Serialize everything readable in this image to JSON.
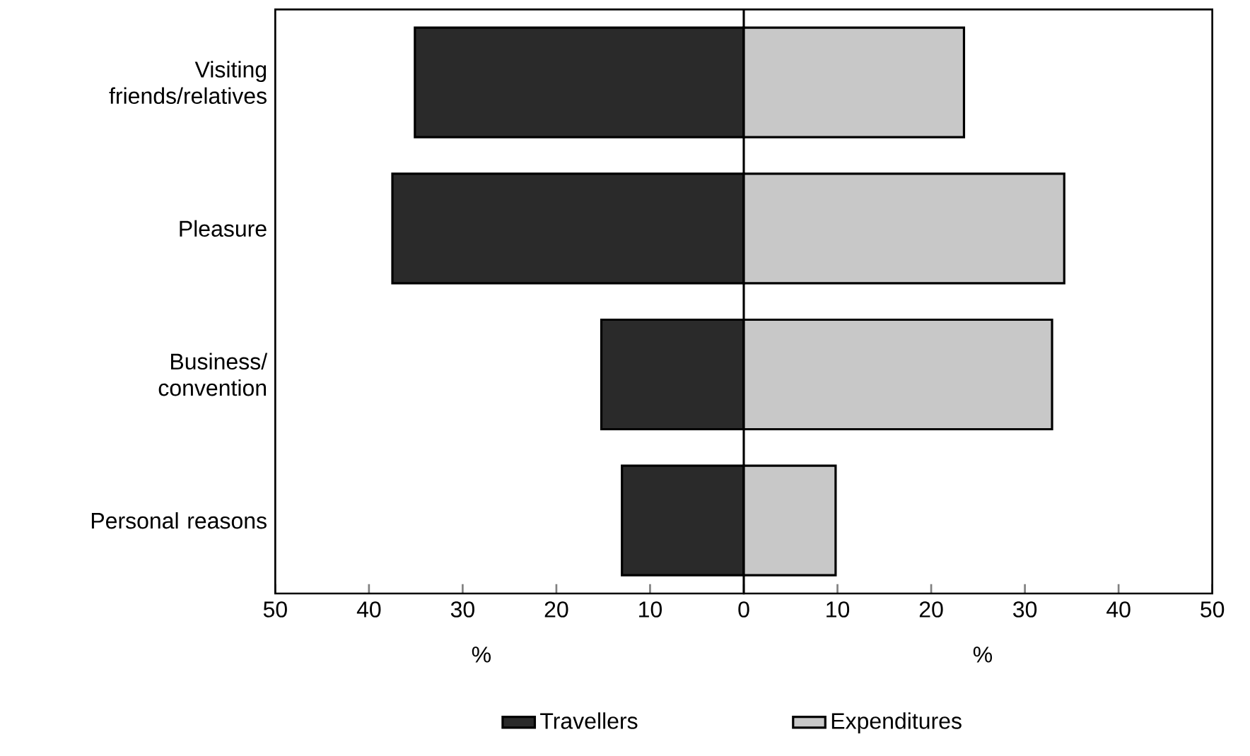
{
  "chart_data": [
    {
      "type": "bar",
      "orientation": "horizontal",
      "xlabel": "%",
      "categories": [
        "Visiting friends/relatives",
        "Pleasure",
        "Business/ convention",
        "Personal reasons"
      ],
      "series": [
        {
          "name": "Travellers",
          "color": "#2a2a2a",
          "values": [
            35.1,
            37.5,
            15.2,
            13.0
          ]
        }
      ],
      "xlim": [
        50,
        0
      ],
      "xticks": [
        50,
        40,
        30,
        20,
        10
      ],
      "grid": false,
      "legend": "bottom"
    },
    {
      "type": "bar",
      "orientation": "horizontal",
      "xlabel": "%",
      "categories": [
        null,
        null,
        null,
        null
      ],
      "series": [
        {
          "name": "Expenditures",
          "color": "#c8c8c8",
          "values": [
            23.5,
            34.2,
            32.9,
            9.8
          ]
        }
      ],
      "xlim": [
        0,
        50
      ],
      "xticks": [
        0,
        10,
        20,
        30,
        40,
        50
      ],
      "grid": false,
      "legend": "bottom",
      "tick_labels": "x"
    }
  ]
}
